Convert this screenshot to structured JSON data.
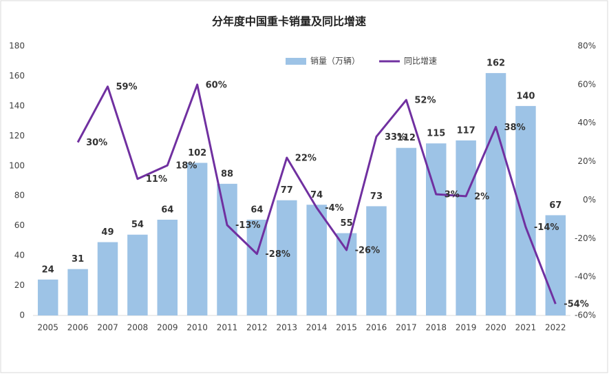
{
  "chart_data": {
    "type": "bar",
    "title": "分年度中国重卡销量及同比增速",
    "categories": [
      "2005",
      "2006",
      "2007",
      "2008",
      "2009",
      "2010",
      "2011",
      "2012",
      "2013",
      "2014",
      "2015",
      "2016",
      "2017",
      "2018",
      "2019",
      "2020",
      "2021",
      "2022"
    ],
    "series": [
      {
        "name": "销量（万辆）",
        "type": "bar",
        "color": "#9dc3e6",
        "values": [
          24,
          31,
          49,
          54,
          64,
          102,
          88,
          64,
          77,
          74,
          55,
          73,
          112,
          115,
          117,
          162,
          140,
          67
        ]
      },
      {
        "name": "同比增速",
        "type": "line",
        "axis": "y2",
        "color": "#7030a0",
        "values": [
          null,
          30,
          59,
          11,
          18,
          60,
          -13,
          -28,
          22,
          -4,
          -26,
          33,
          52,
          3,
          2,
          38,
          -14,
          -54
        ],
        "value_labels": [
          null,
          "30%",
          "59%",
          "11%",
          "18%",
          "60%",
          "-13%",
          "-28%",
          "22%",
          "-4%",
          "-26%",
          "33%",
          "52%",
          "3%",
          "2%",
          "38%",
          "-14%",
          "-54%"
        ]
      }
    ],
    "ylim": [
      0,
      180
    ],
    "yticks": [
      0,
      20,
      40,
      60,
      80,
      100,
      120,
      140,
      160,
      180
    ],
    "y2lim": [
      -60,
      80
    ],
    "y2ticks": [
      {
        "value": -60,
        "label": "-60%"
      },
      {
        "value": -40,
        "label": "-40%"
      },
      {
        "value": -20,
        "label": "-20%"
      },
      {
        "value": 0,
        "label": "0%"
      },
      {
        "value": 20,
        "label": "20%"
      },
      {
        "value": 40,
        "label": "40%"
      },
      {
        "value": 60,
        "label": "60%"
      },
      {
        "value": 80,
        "label": "80%"
      }
    ],
    "grid": false
  }
}
